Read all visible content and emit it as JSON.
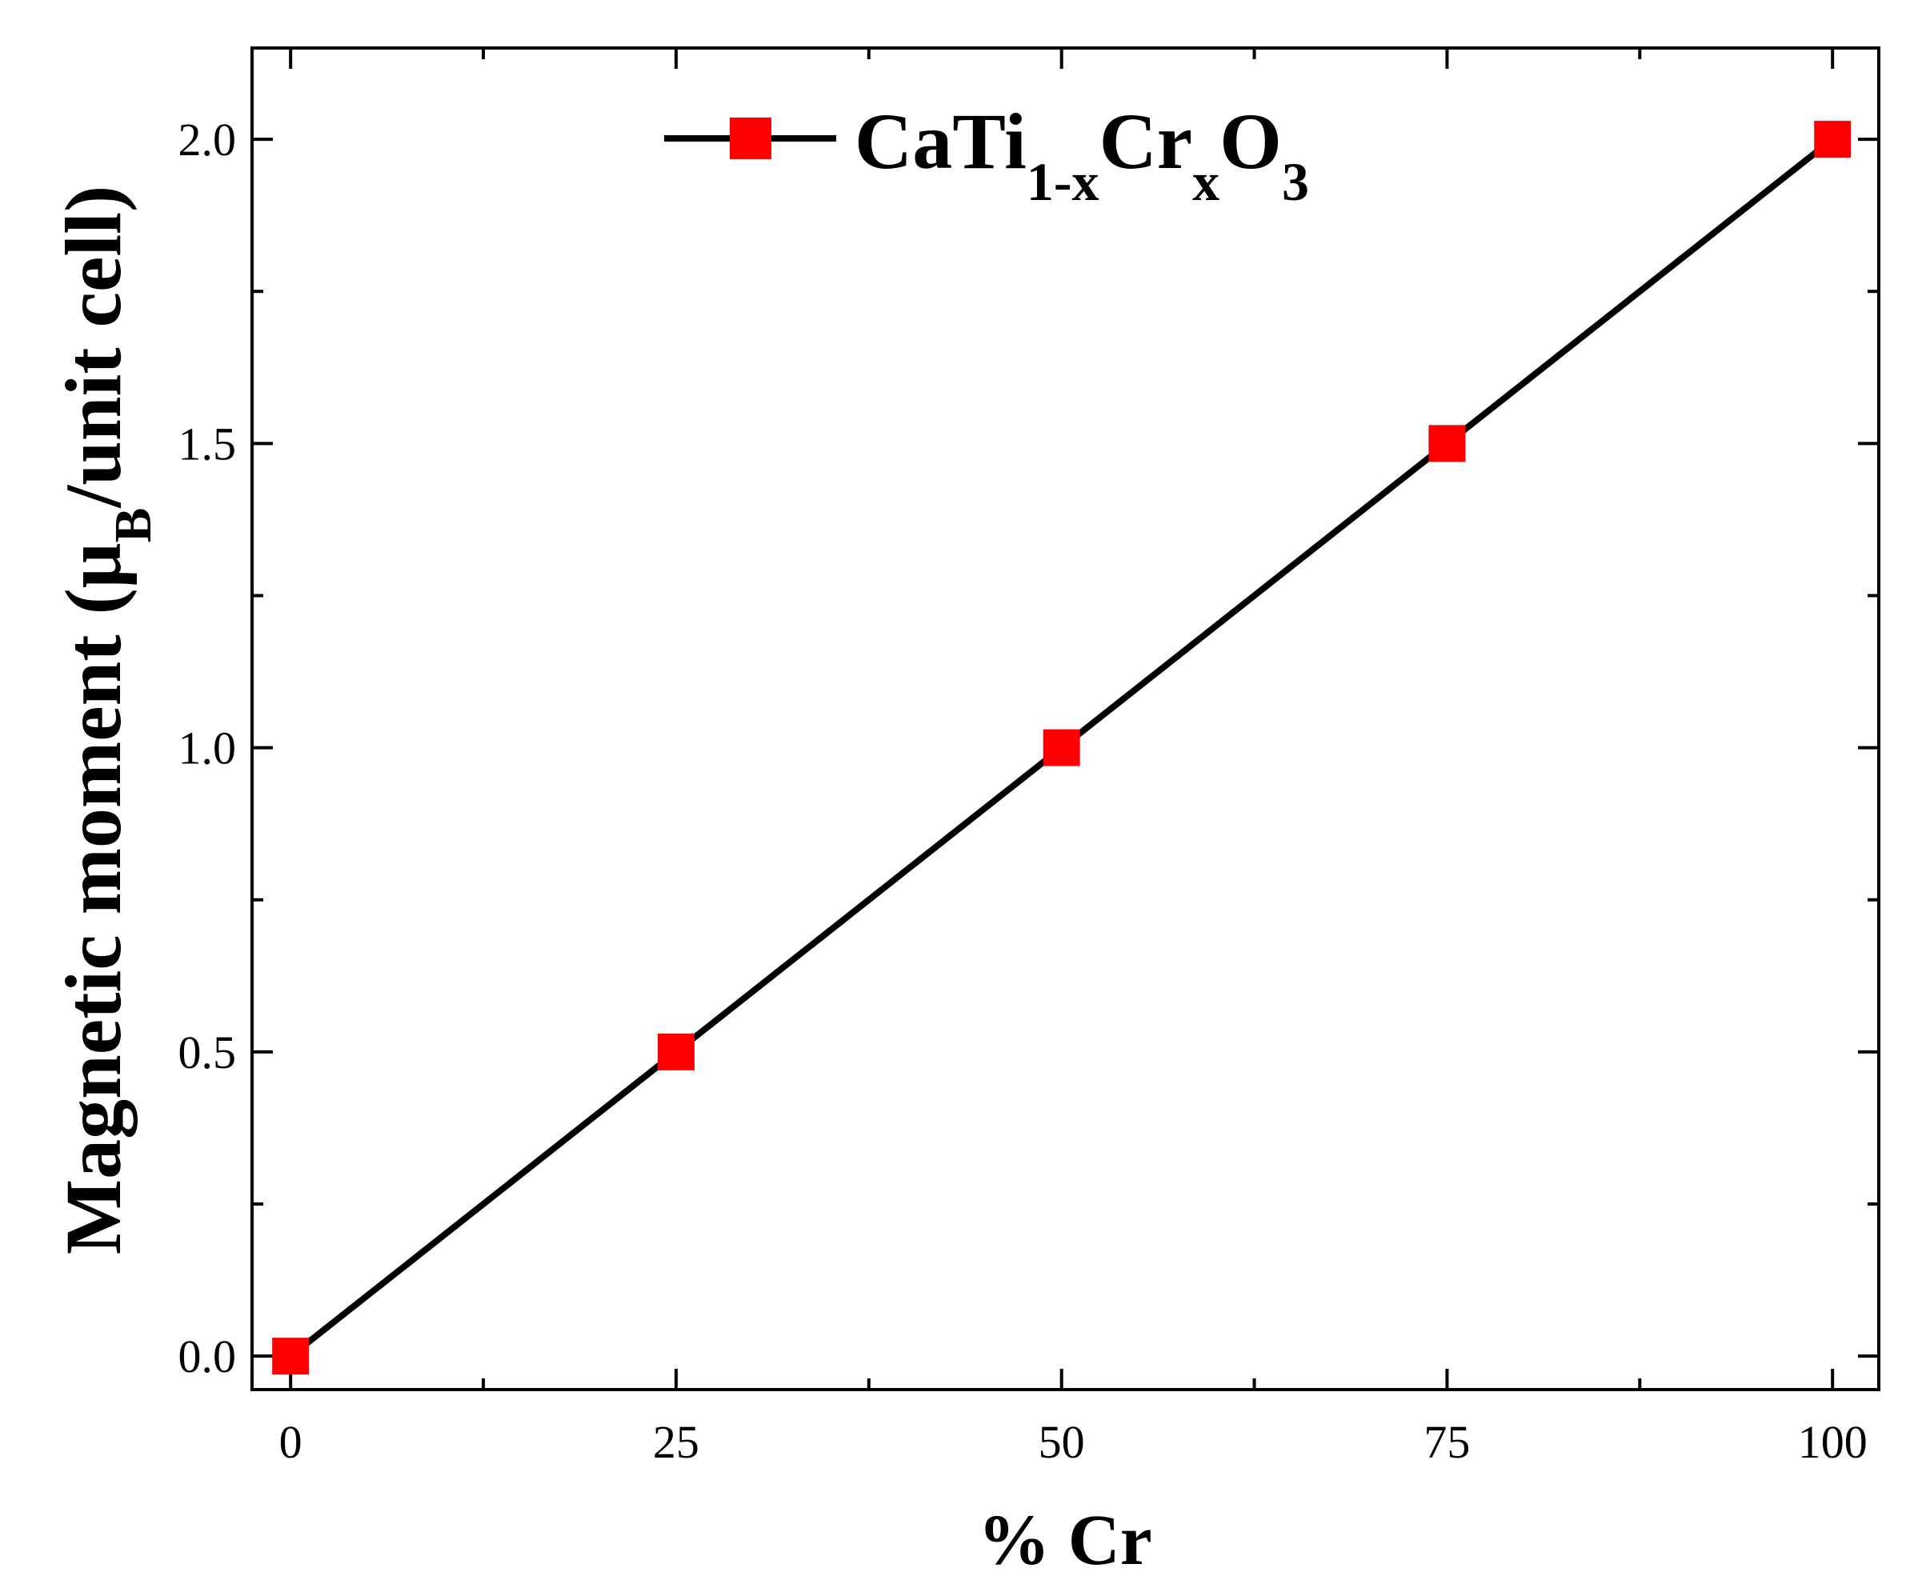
{
  "chart_data": {
    "type": "line",
    "title": "",
    "xlabel": "% Cr",
    "ylabel": {
      "prefix": "Magnetic moment (μ",
      "sub": "B",
      "suffix": "/unit cell)"
    },
    "xlim": [
      -2.5,
      103
    ],
    "ylim": [
      -0.055,
      2.15
    ],
    "xticks": [
      0,
      25,
      50,
      75,
      100
    ],
    "xtick_labels": [
      "0",
      "25",
      "50",
      "75",
      "100"
    ],
    "x_minor_ticks": [
      12.5,
      37.5,
      62.5,
      87.5
    ],
    "yticks": [
      0.0,
      0.5,
      1.0,
      1.5,
      2.0
    ],
    "ytick_labels": [
      "0.0",
      "0.5",
      "1.0",
      "1.5",
      "2.0"
    ],
    "y_minor_ticks": [
      0.25,
      0.75,
      1.25,
      1.75
    ],
    "grid": false,
    "legend_position": "top-center",
    "series": [
      {
        "name": {
          "base1": "CaTi",
          "sub1": "1-x",
          "base2": "Cr",
          "sub2": "x",
          "base3": "O",
          "sub3": "3"
        },
        "line_color": "#000000",
        "marker": "square",
        "marker_color": "#ff0000",
        "x": [
          0,
          25,
          50,
          75,
          100
        ],
        "y": [
          0.0,
          0.5,
          1.0,
          1.5,
          2.0
        ]
      }
    ]
  }
}
